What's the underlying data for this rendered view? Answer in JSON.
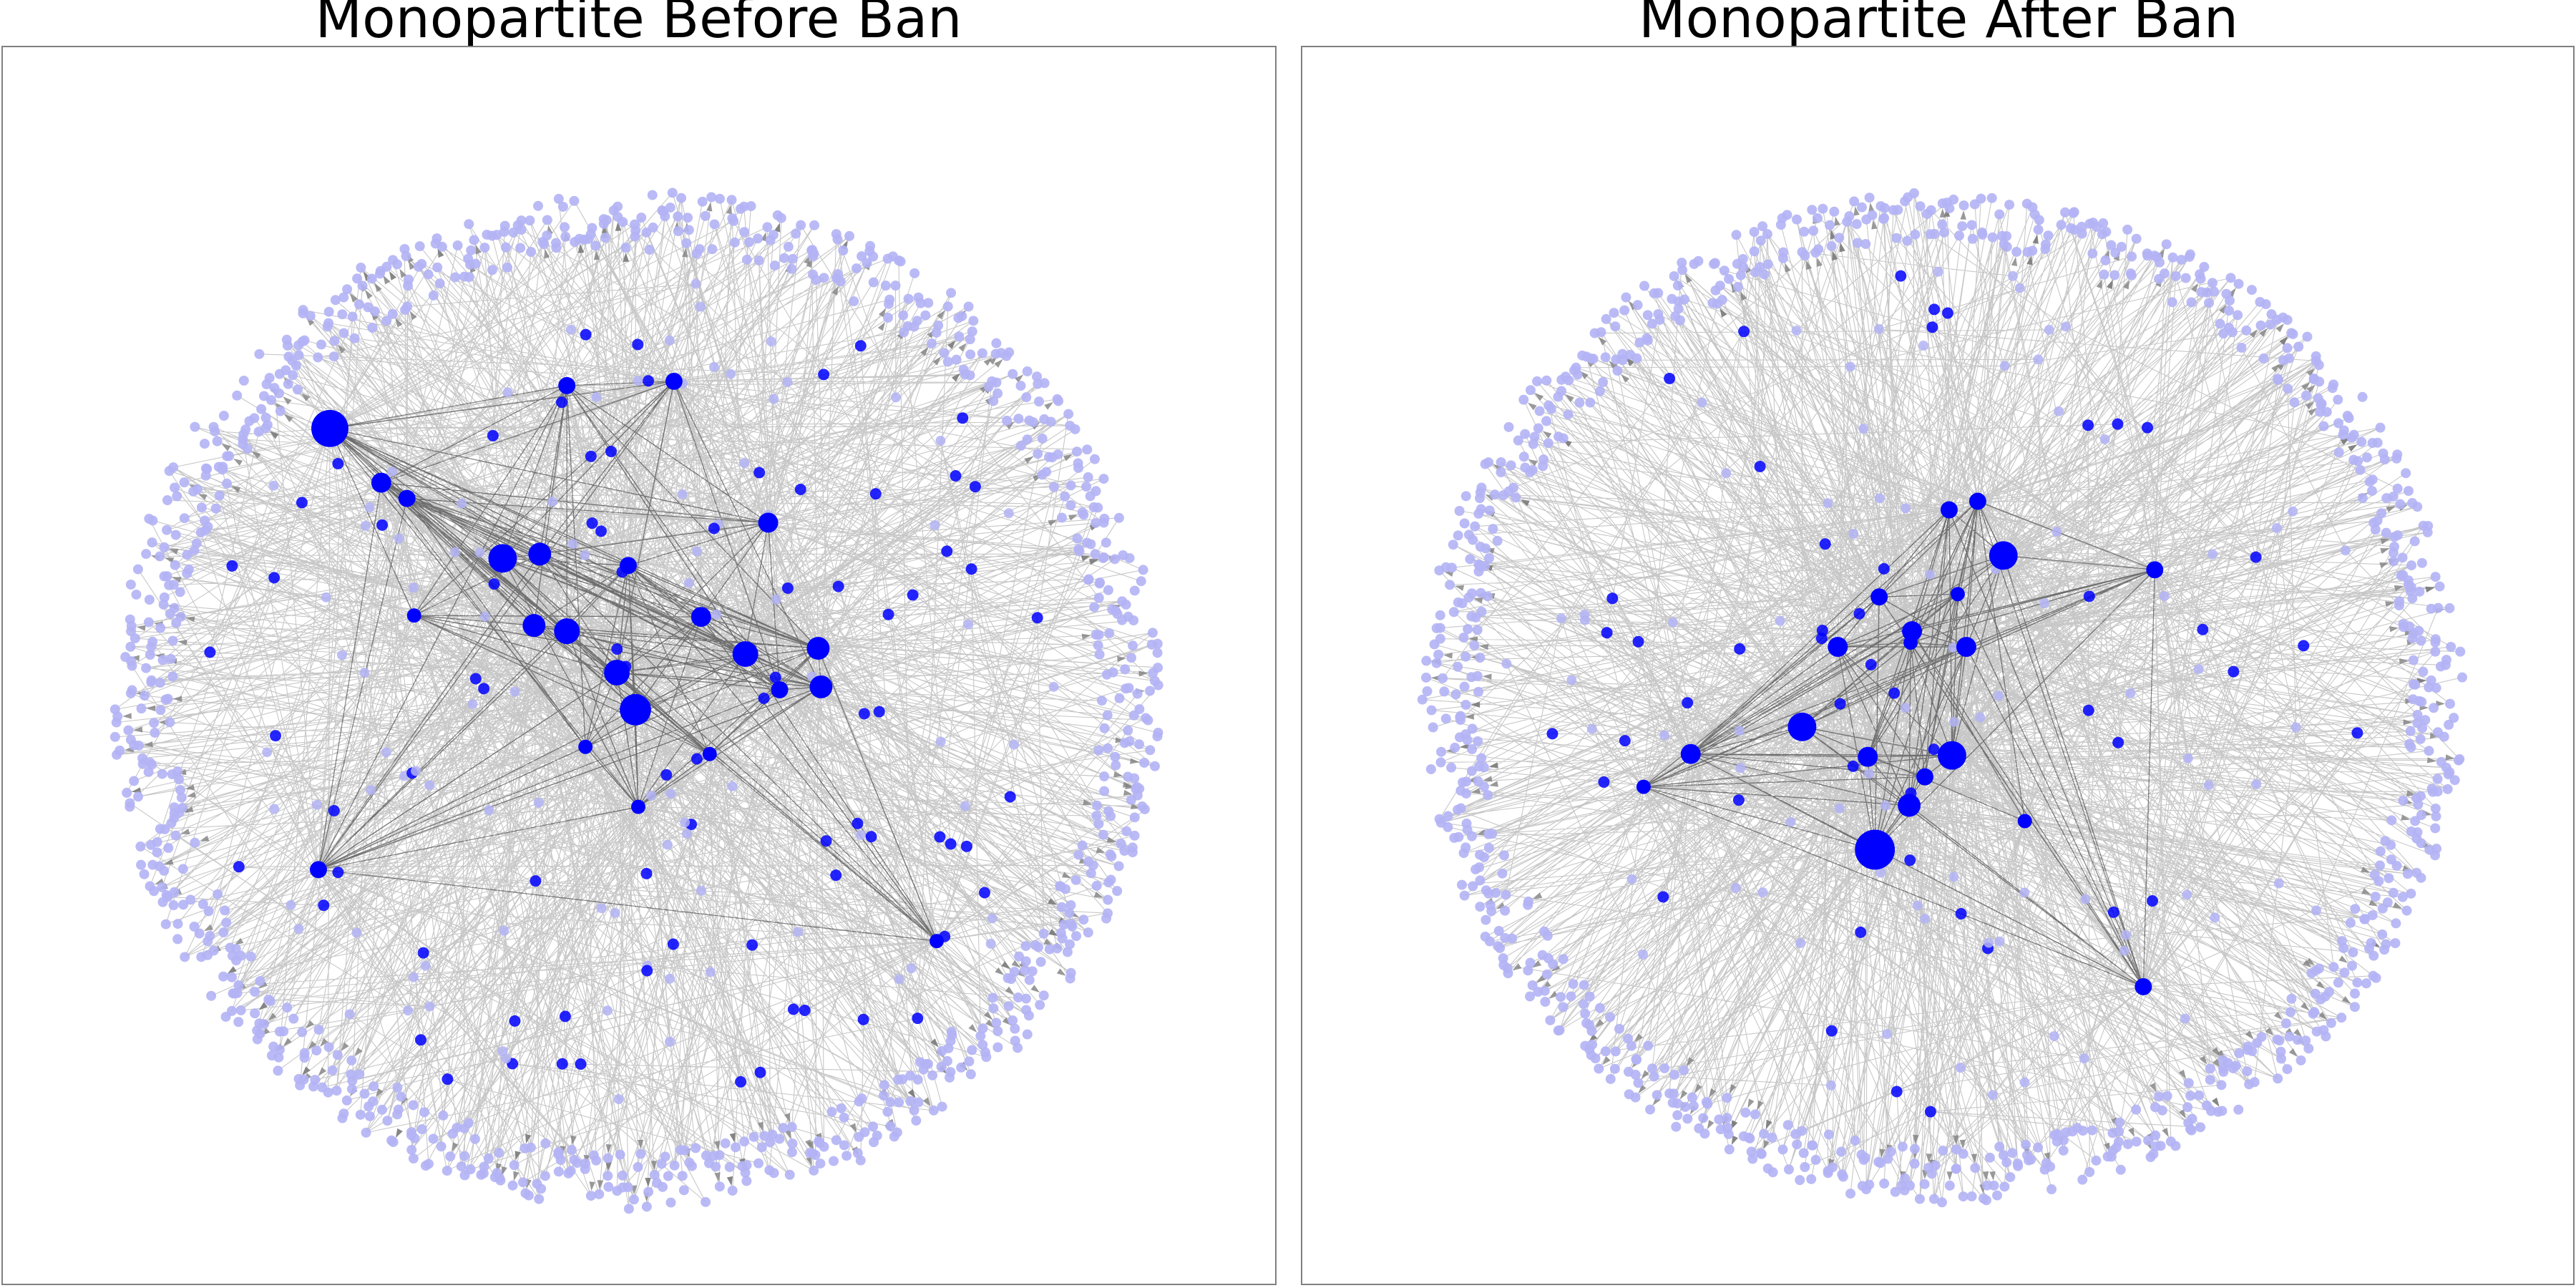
{
  "panels": [
    {
      "id": "before",
      "title": "Monopartite Before Ban"
    },
    {
      "id": "after",
      "title": "Monopartite After Ban"
    }
  ],
  "colors": {
    "node_fill": "#0000ff",
    "peripheral_node_fill": "#b3b3f5",
    "edge_color": "#000000",
    "arrow_gray": "#7f7f7f",
    "frame": "#808080"
  }
}
